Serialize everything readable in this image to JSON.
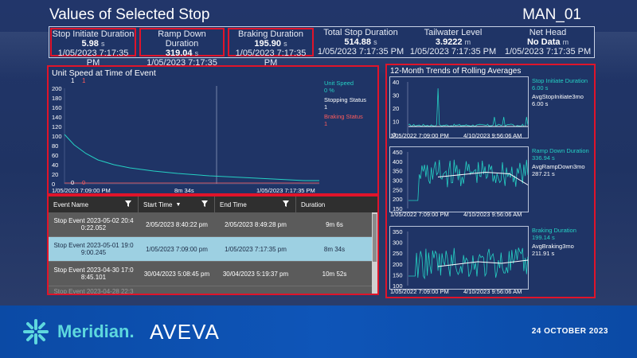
{
  "header": {
    "title": "Values of Selected Stop",
    "asset": "MAN_01"
  },
  "kpis": [
    {
      "title": "Stop Initiate Duration",
      "value": "5.98",
      "unit": "s",
      "time": "1/05/2023 7:17:35 PM",
      "highlighted": true
    },
    {
      "title": "Ramp Down Duration",
      "value": "319.04",
      "unit": "s",
      "time": "1/05/2023 7:17:35 PM",
      "highlighted": true
    },
    {
      "title": "Braking Duration",
      "value": "195.90",
      "unit": "s",
      "time": "1/05/2023 7:17:35 PM",
      "highlighted": true
    },
    {
      "title": "Total Stop Duration",
      "value": "514.88",
      "unit": "s",
      "time": "1/05/2023 7:17:35 PM",
      "highlighted": false
    },
    {
      "title": "Tailwater Level",
      "value": "3.9222",
      "unit": "m",
      "time": "1/05/2023 7:17:35 PM",
      "highlighted": false
    },
    {
      "title": "Net Head",
      "value": "No Data",
      "unit": "m",
      "time": "1/05/2023 7:17:35 PM",
      "highlighted": false
    }
  ],
  "speed_chart": {
    "title": "Unit Speed at Time of Event",
    "top_markers": [
      "1",
      "1"
    ],
    "bottom_markers": [
      "0",
      "0"
    ],
    "start_time": "1/05/2023 7:09:00 PM",
    "duration": "8m 34s",
    "end_time": "1/05/2023 7:17:35 PM",
    "legend": {
      "speed_label": "Unit Speed",
      "speed_value": "0 %",
      "stopping_label": "Stopping Status",
      "stopping_value": "1",
      "braking_label": "Braking Status",
      "braking_value": "1"
    }
  },
  "events_table": {
    "columns": [
      "Event Name",
      "Start Time",
      "End Time",
      "Duration"
    ],
    "rows": [
      {
        "name_line1": "Stop Event 2023-05-02 20:4",
        "name_line2": "0:22.052",
        "start": "2/05/2023 8:40:22 pm",
        "end": "2/05/2023 8:49:28 pm",
        "duration": "9m 6s"
      },
      {
        "name_line1": "Stop Event 2023-05-01 19:0",
        "name_line2": "9:00.245",
        "start": "1/05/2023 7:09:00 pm",
        "end": "1/05/2023 7:17:35 pm",
        "duration": "8m 34s"
      },
      {
        "name_line1": "Stop Event 2023-04-30 17:0",
        "name_line2": "8:45.101",
        "start": "30/04/2023 5:08:45 pm",
        "end": "30/04/2023 5:19:37 pm",
        "duration": "10m 52s"
      },
      {
        "name_line1": "Stop Event 2023-04-28 22:3",
        "name_line2": "",
        "start": "",
        "end": "",
        "duration": ""
      }
    ]
  },
  "trends": {
    "title": "12-Month Trends of Rolling Averages",
    "start_time": "1/05/2022 7:09:00 PM",
    "end_time": "4/10/2023 9:56:06 AM",
    "charts": [
      {
        "metric": "Stop Initiate Duration",
        "metric_value": "6.00 s",
        "avg_label": "AvgStopInitiate3mo",
        "avg_value": "6.00 s",
        "y_ticks": [
          "40",
          "30",
          "20",
          "10",
          "0"
        ]
      },
      {
        "metric": "Ramp Down Duration",
        "metric_value": "336.94 s",
        "avg_label": "AvgRampDown3mo",
        "avg_value": "287.21 s",
        "y_ticks": [
          "450",
          "400",
          "350",
          "300",
          "250",
          "200",
          "150"
        ]
      },
      {
        "metric": "Braking Duration",
        "metric_value": "199.14 s",
        "avg_label": "AvgBraking3mo",
        "avg_value": "211.91 s",
        "y_ticks": [
          "350",
          "300",
          "250",
          "200",
          "150",
          "100"
        ]
      }
    ]
  },
  "speed_axis": {
    "ticks": [
      "200",
      "180",
      "160",
      "140",
      "120",
      "100",
      "80",
      "60",
      "40",
      "20",
      "0"
    ]
  },
  "footer": {
    "brand1": "Meridian.",
    "brand2": "AVEVA",
    "date": "24 OCTOBER 2023"
  },
  "colors": {
    "accent_red": "#e0142a",
    "teal": "#25d0c3",
    "selected_row": "#9dd0e2"
  }
}
